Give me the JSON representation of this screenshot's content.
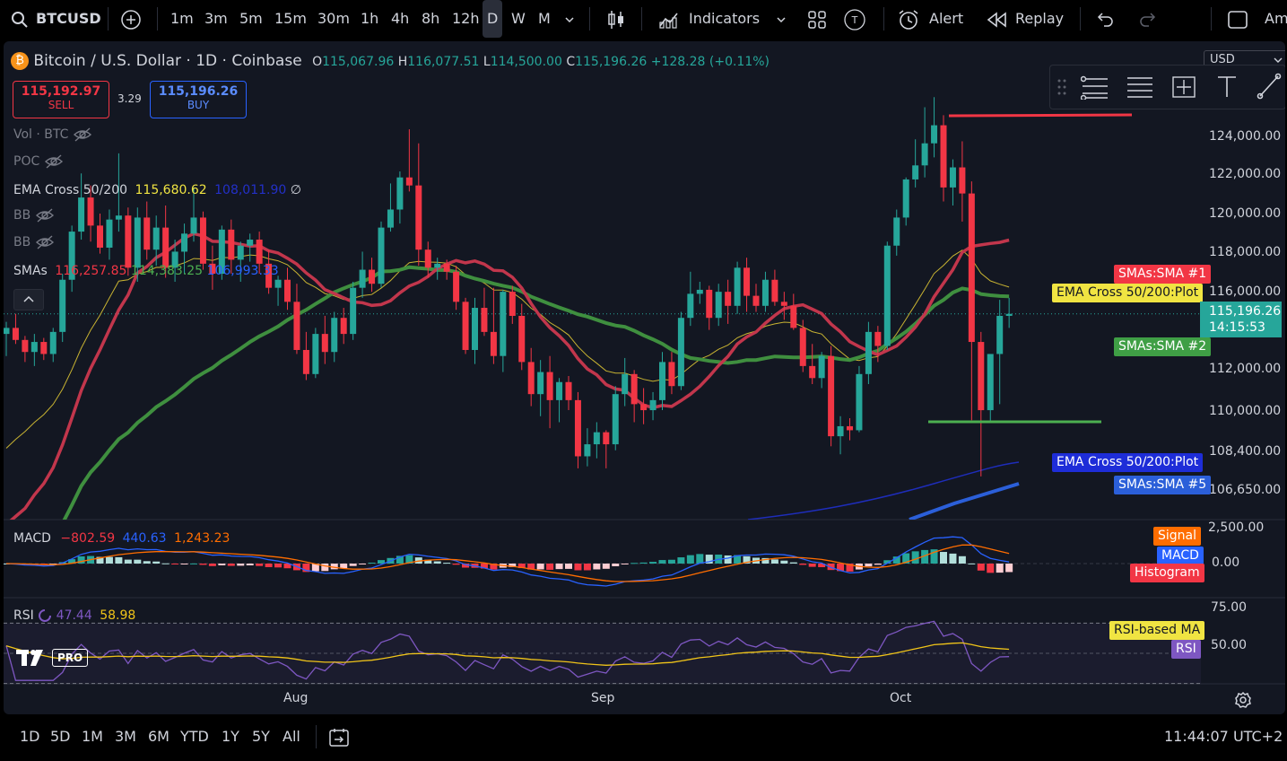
{
  "topbar": {
    "symbol": "BTCUSD",
    "intervals": [
      "1m",
      "3m",
      "5m",
      "15m",
      "30m",
      "1h",
      "4h",
      "8h",
      "12h",
      "D",
      "W",
      "M"
    ],
    "active_interval": "D",
    "indicators_label": "Indicators",
    "alert_label": "Alert",
    "replay_label": "Replay",
    "cut_label": "Am"
  },
  "header": {
    "title": "Bitcoin / U.S. Dollar · 1D · Coinbase",
    "o_label": "O",
    "o_value": "115,067.96",
    "h_label": "H",
    "h_value": "116,077.51",
    "l_label": "L",
    "l_value": "114,500.00",
    "c_label": "C",
    "c_value": "115,196.26",
    "change": "+128.28 (+0.11%)",
    "currency": "USD"
  },
  "trade": {
    "sell_price": "115,192.97",
    "sell_label": "SELL",
    "spread": "3.29",
    "buy_price": "115,196.26",
    "buy_label": "BUY"
  },
  "legends": {
    "vol": "Vol · BTC",
    "poc": "POC",
    "ema_name": "EMA Cross 50/200",
    "ema_v1": "115,680.62",
    "ema_v2": "108,011.90",
    "bb1": "BB",
    "bb2": "BB",
    "smas_name": "SMAs",
    "sma_v1": "116,257.85",
    "sma_v2": "114,383.25",
    "sma_v3": "106,993.33",
    "macd_name": "MACD",
    "macd_v1": "−802.59",
    "macd_v2": "440.63",
    "macd_v3": "1,243.23",
    "rsi_name": "RSI",
    "rsi_v1": "47.44",
    "rsi_v2": "58.98"
  },
  "price_axis": [
    "124,000.00",
    "122,000.00",
    "120,000.00",
    "118,000.00",
    "116,000.00",
    "112,000.00",
    "110,000.00",
    "108,400.00",
    "106,650.00"
  ],
  "price_tags": {
    "sma1": "SMAs:SMA #1",
    "ema_plot_top": "EMA Cross 50/200:Plot",
    "last_price": "115,196.26",
    "countdown": "14:15:53",
    "sma2": "SMAs:SMA #2",
    "ema_plot_bottom": "EMA Cross 50/200:Plot",
    "sma5": "SMAs:SMA #5"
  },
  "macd_axis": [
    "2,500.00",
    "0.00"
  ],
  "macd_tags": {
    "signal": "Signal",
    "macd": "MACD",
    "histogram": "Histogram"
  },
  "rsi_axis": [
    "75.00",
    "50.00"
  ],
  "rsi_tags": {
    "ma": "RSI-based MA",
    "rsi": "RSI"
  },
  "x_axis": [
    "Aug",
    "Sep",
    "Oct"
  ],
  "logo_text": "PRO",
  "bottombar": {
    "ranges": [
      "1D",
      "5D",
      "1M",
      "3M",
      "6M",
      "YTD",
      "1Y",
      "5Y",
      "All"
    ],
    "clock": "11:44:07 UTC+2"
  },
  "colors": {
    "up": "#26a69a",
    "down": "#f23645",
    "sma1": "#c2364c",
    "sma2": "#3f8f3f",
    "ema_fast": "#c8b332",
    "ema_slow": "#1e2dba",
    "sma5": "#2b5fd9",
    "macd": "#2962ff",
    "signal": "#ff6d00",
    "rsi": "#7e57c2",
    "rsi_ma": "#f0c419"
  },
  "chart_data": {
    "type": "candlestick",
    "ylim": [
      105500,
      126000
    ],
    "candles": [
      [
        114200,
        114800,
        113100,
        114500
      ],
      [
        114500,
        115200,
        113700,
        113900
      ],
      [
        113900,
        114100,
        112800,
        113300
      ],
      [
        113300,
        114200,
        112600,
        113800
      ],
      [
        113800,
        114000,
        112900,
        113200
      ],
      [
        113200,
        114500,
        112800,
        114300
      ],
      [
        114300,
        117200,
        113800,
        116900
      ],
      [
        116900,
        119600,
        116300,
        119300
      ],
      [
        119300,
        122200,
        118900,
        121000
      ],
      [
        121000,
        121600,
        118800,
        119600
      ],
      [
        119600,
        120200,
        118200,
        118500
      ],
      [
        118500,
        120400,
        117900,
        119900
      ],
      [
        119900,
        123200,
        119300,
        120100
      ],
      [
        120100,
        120500,
        117100,
        117500
      ],
      [
        117500,
        120500,
        116800,
        120000
      ],
      [
        120000,
        120800,
        117900,
        118400
      ],
      [
        118400,
        120100,
        117600,
        119500
      ],
      [
        119500,
        120600,
        117000,
        117500
      ],
      [
        117500,
        118900,
        116800,
        118300
      ],
      [
        118300,
        119700,
        117200,
        119200
      ],
      [
        119200,
        121500,
        118800,
        120000
      ],
      [
        120000,
        120300,
        117400,
        117700
      ],
      [
        117700,
        118600,
        116400,
        117200
      ],
      [
        117200,
        119600,
        116900,
        119400
      ],
      [
        119400,
        119900,
        117200,
        117900
      ],
      [
        117900,
        118800,
        116800,
        118600
      ],
      [
        118600,
        119200,
        117800,
        118900
      ],
      [
        118900,
        119300,
        117200,
        117700
      ],
      [
        117700,
        118400,
        116200,
        116500
      ],
      [
        116500,
        117100,
        115600,
        116900
      ],
      [
        116900,
        117500,
        115400,
        115800
      ],
      [
        115800,
        116700,
        113200,
        113400
      ],
      [
        113400,
        114300,
        111900,
        112200
      ],
      [
        112200,
        114500,
        112000,
        114200
      ],
      [
        114200,
        115100,
        112700,
        113300
      ],
      [
        113300,
        115300,
        112800,
        115000
      ],
      [
        115000,
        115500,
        113700,
        114200
      ],
      [
        114200,
        116800,
        113900,
        116500
      ],
      [
        116500,
        118300,
        116000,
        117400
      ],
      [
        117400,
        118000,
        116300,
        116700
      ],
      [
        116700,
        119800,
        116500,
        119500
      ],
      [
        119500,
        121700,
        119300,
        120400
      ],
      [
        120400,
        122300,
        119700,
        122000
      ],
      [
        122000,
        124400,
        121300,
        121600
      ],
      [
        121600,
        123700,
        117600,
        118400
      ],
      [
        118400,
        118800,
        117000,
        117500
      ],
      [
        117500,
        118000,
        116900,
        117700
      ],
      [
        117700,
        117900,
        116900,
        117300
      ],
      [
        117300,
        117600,
        115400,
        115800
      ],
      [
        115800,
        116000,
        113200,
        113400
      ],
      [
        113400,
        116000,
        112700,
        115500
      ],
      [
        115500,
        116500,
        114100,
        114300
      ],
      [
        114300,
        116500,
        112700,
        113100
      ],
      [
        113100,
        116400,
        112300,
        116300
      ],
      [
        116300,
        116600,
        114700,
        115100
      ],
      [
        115100,
        115700,
        112400,
        112800
      ],
      [
        112800,
        113500,
        110600,
        111200
      ],
      [
        111200,
        112900,
        110100,
        112300
      ],
      [
        112300,
        113100,
        109500,
        110900
      ],
      [
        110900,
        112000,
        109800,
        111800
      ],
      [
        111800,
        112100,
        110400,
        110900
      ],
      [
        110900,
        111300,
        107500,
        108100
      ],
      [
        108100,
        109500,
        107600,
        108700
      ],
      [
        108700,
        109800,
        108000,
        109300
      ],
      [
        109300,
        109400,
        107500,
        108700
      ],
      [
        108700,
        111600,
        108400,
        111200
      ],
      [
        111200,
        113000,
        110600,
        112200
      ],
      [
        112200,
        112400,
        109800,
        110700
      ],
      [
        110700,
        111500,
        109700,
        110400
      ],
      [
        110400,
        111300,
        109900,
        110900
      ],
      [
        110900,
        113300,
        110400,
        112800
      ],
      [
        112800,
        113300,
        111200,
        111600
      ],
      [
        111600,
        115300,
        111400,
        115000
      ],
      [
        115000,
        117300,
        114600,
        116200
      ],
      [
        116200,
        116800,
        115700,
        116400
      ],
      [
        116400,
        116600,
        114400,
        115000
      ],
      [
        115000,
        116700,
        114600,
        116300
      ],
      [
        116300,
        116900,
        114700,
        115600
      ],
      [
        115600,
        117800,
        115200,
        117500
      ],
      [
        117500,
        118000,
        115300,
        116100
      ],
      [
        116100,
        116700,
        115300,
        115600
      ],
      [
        115600,
        117300,
        115300,
        116900
      ],
      [
        116900,
        117400,
        115600,
        115800
      ],
      [
        115800,
        116300,
        114900,
        115600
      ],
      [
        115600,
        116200,
        114400,
        114500
      ],
      [
        114500,
        114900,
        112300,
        112600
      ],
      [
        112600,
        113700,
        111700,
        112000
      ],
      [
        112000,
        113300,
        111500,
        113100
      ],
      [
        113100,
        113600,
        108600,
        109100
      ],
      [
        109100,
        110100,
        108200,
        109600
      ],
      [
        109600,
        110000,
        108900,
        109400
      ],
      [
        109400,
        112600,
        109300,
        112200
      ],
      [
        112200,
        114800,
        111700,
        114300
      ],
      [
        114300,
        114600,
        112800,
        113600
      ],
      [
        113600,
        118800,
        113400,
        118600
      ],
      [
        118600,
        120400,
        118100,
        120000
      ],
      [
        120000,
        122000,
        119600,
        121900
      ],
      [
        121900,
        123900,
        121500,
        122600
      ],
      [
        122600,
        125500,
        122000,
        123700
      ],
      [
        123700,
        126000,
        123000,
        124600
      ],
      [
        124600,
        125100,
        120800,
        121500
      ],
      [
        121500,
        122900,
        120600,
        122500
      ],
      [
        122500,
        123800,
        119800,
        121200
      ],
      [
        121200,
        121800,
        109900,
        113800
      ],
      [
        113800,
        114300,
        107100,
        110400
      ],
      [
        110400,
        113200,
        109800,
        113200
      ],
      [
        113200,
        115900,
        110700,
        115100
      ],
      [
        115100,
        116000,
        114500,
        115200
      ]
    ]
  }
}
